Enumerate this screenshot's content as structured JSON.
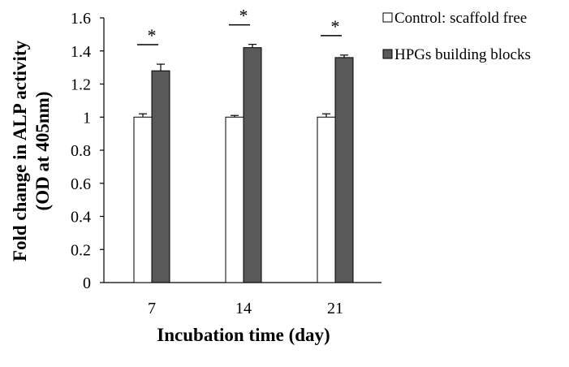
{
  "chart_data": {
    "type": "bar",
    "title": "",
    "xlabel": "Incubation time (day)",
    "ylabel": [
      "Fold change in ALP activity",
      "(OD at 405nm)"
    ],
    "categories": [
      "7",
      "14",
      "21"
    ],
    "ylim": [
      0,
      1.6
    ],
    "yticks": [
      "0",
      "0.2",
      "0.4",
      "0.6",
      "0.8",
      "1",
      "1.2",
      "1.4",
      "1.6"
    ],
    "series": [
      {
        "name": "Control: scaffold free",
        "values": [
          1.0,
          1.0,
          1.0
        ],
        "errors": [
          0.02,
          0.01,
          0.02
        ],
        "color": "#ffffff"
      },
      {
        "name": "HPGs building blocks",
        "values": [
          1.28,
          1.42,
          1.36
        ],
        "errors": [
          0.04,
          0.02,
          0.015
        ],
        "color": "#595959"
      }
    ],
    "significance_marker": "*",
    "legend_position": "top-right",
    "grid": false
  }
}
